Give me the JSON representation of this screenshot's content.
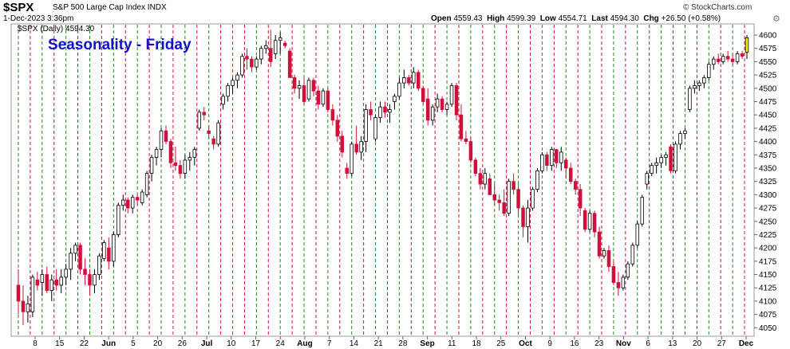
{
  "header": {
    "symbol": "$SPX",
    "description": "S&P 500 Large Cap Index INDX",
    "datetime": "1-Dec-2023 3:36pm",
    "open_label": "Open",
    "open": "4559.43",
    "high_label": "High",
    "high": "4599.39",
    "low_label": "Low",
    "low": "4554.71",
    "last_label": "Last",
    "last": "4594.30",
    "chg_label": "Chg",
    "chg": "+26.50 (+0.58%)",
    "brand": "© StockCharts.com",
    "legend": "$SPX (Daily) 4594.30"
  },
  "chart_data": {
    "type": "candlestick",
    "title": "Seasonality - Friday",
    "y_range": [
      4040,
      4615
    ],
    "y_ticks": [
      4050,
      4075,
      4100,
      4125,
      4150,
      4175,
      4200,
      4225,
      4250,
      4275,
      4300,
      4325,
      4350,
      4375,
      4400,
      4425,
      4450,
      4475,
      4500,
      4525,
      4550,
      4575,
      4600
    ],
    "x_tick_labels": [
      "8",
      "15",
      "22",
      "Jun",
      "5",
      "20",
      "26",
      "Jul",
      "10",
      "17",
      "24",
      "Aug",
      "7",
      "14",
      "21",
      "28",
      "Sep",
      "11",
      "18",
      "25",
      "Oct",
      "9",
      "16",
      "23",
      "Nov",
      "6",
      "13",
      "20",
      "27",
      "Dec"
    ],
    "colors": {
      "up": "#ffffff",
      "down": "#d0103a",
      "outline": "#000000",
      "friday_line": "#1a8a1a",
      "other_line": "#d0103a",
      "highlight": "#f4f000"
    },
    "candles": [
      [
        4130,
        4160,
        4075,
        4100
      ],
      [
        4100,
        4130,
        4055,
        4080
      ],
      [
        4080,
        4110,
        4060,
        4095
      ],
      [
        4080,
        4150,
        4070,
        4145
      ],
      [
        4140,
        4155,
        4120,
        4130
      ],
      [
        4135,
        4160,
        4110,
        4150
      ],
      [
        4150,
        4165,
        4115,
        4120
      ],
      [
        4120,
        4150,
        4100,
        4140
      ],
      [
        4140,
        4160,
        4120,
        4130
      ],
      [
        4130,
        4160,
        4115,
        4145
      ],
      [
        4145,
        4170,
        4130,
        4160
      ],
      [
        4160,
        4200,
        4140,
        4190
      ],
      [
        4190,
        4210,
        4175,
        4205
      ],
      [
        4205,
        4210,
        4150,
        4160
      ],
      [
        4160,
        4180,
        4130,
        4150
      ],
      [
        4150,
        4160,
        4110,
        4130
      ],
      [
        4130,
        4160,
        4115,
        4150
      ],
      [
        4150,
        4190,
        4140,
        4185
      ],
      [
        4180,
        4215,
        4175,
        4210
      ],
      [
        4200,
        4220,
        4160,
        4175
      ],
      [
        4175,
        4230,
        4165,
        4225
      ],
      [
        4225,
        4285,
        4220,
        4280
      ],
      [
        4280,
        4300,
        4270,
        4290
      ],
      [
        4290,
        4295,
        4265,
        4275
      ],
      [
        4275,
        4300,
        4265,
        4295
      ],
      [
        4295,
        4300,
        4280,
        4290
      ],
      [
        4285,
        4310,
        4280,
        4305
      ],
      [
        4300,
        4345,
        4295,
        4340
      ],
      [
        4340,
        4375,
        4325,
        4370
      ],
      [
        4370,
        4390,
        4355,
        4385
      ],
      [
        4385,
        4425,
        4370,
        4420
      ],
      [
        4420,
        4430,
        4395,
        4400
      ],
      [
        4400,
        4405,
        4350,
        4360
      ],
      [
        4360,
        4390,
        4345,
        4355
      ],
      [
        4355,
        4365,
        4330,
        4340
      ],
      [
        4340,
        4375,
        4330,
        4365
      ],
      [
        4365,
        4380,
        4345,
        4370
      ],
      [
        4370,
        4390,
        4355,
        4385
      ],
      [
        4425,
        4460,
        4420,
        4455
      ],
      [
        4455,
        4465,
        4440,
        4450
      ],
      [
        4420,
        4430,
        4405,
        4415
      ],
      [
        4405,
        4410,
        4385,
        4395
      ],
      [
        4395,
        4440,
        4390,
        4435
      ],
      [
        4470,
        4490,
        4460,
        4485
      ],
      [
        4485,
        4510,
        4475,
        4505
      ],
      [
        4505,
        4520,
        4490,
        4515
      ],
      [
        4515,
        4530,
        4500,
        4525
      ],
      [
        4525,
        4565,
        4520,
        4560
      ],
      [
        4560,
        4575,
        4535,
        4555
      ],
      [
        4555,
        4560,
        4530,
        4540
      ],
      [
        4540,
        4560,
        4535,
        4555
      ],
      [
        4555,
        4580,
        4545,
        4575
      ],
      [
        4575,
        4590,
        4565,
        4580
      ],
      [
        4575,
        4610,
        4540,
        4550
      ],
      [
        4565,
        4600,
        4555,
        4590
      ],
      [
        4590,
        4605,
        4565,
        4595
      ],
      [
        4585,
        4590,
        4575,
        4580
      ],
      [
        4570,
        4575,
        4520,
        4520
      ],
      [
        4520,
        4525,
        4490,
        4500
      ],
      [
        4500,
        4515,
        4480,
        4505
      ],
      [
        4505,
        4520,
        4470,
        4475
      ],
      [
        4480,
        4520,
        4475,
        4515
      ],
      [
        4515,
        4520,
        4485,
        4495
      ],
      [
        4495,
        4505,
        4460,
        4470
      ],
      [
        4470,
        4500,
        4465,
        4495
      ],
      [
        4495,
        4500,
        4455,
        4460
      ],
      [
        4460,
        4470,
        4430,
        4440
      ],
      [
        4440,
        4450,
        4400,
        4410
      ],
      [
        4410,
        4420,
        4370,
        4380
      ],
      [
        4350,
        4360,
        4330,
        4340
      ],
      [
        4340,
        4400,
        4335,
        4395
      ],
      [
        4395,
        4430,
        4375,
        4380
      ],
      [
        4380,
        4410,
        4365,
        4400
      ],
      [
        4400,
        4470,
        4380,
        4460
      ],
      [
        4460,
        4475,
        4440,
        4450
      ],
      [
        4405,
        4450,
        4400,
        4445
      ],
      [
        4445,
        4475,
        4435,
        4465
      ],
      [
        4465,
        4475,
        4445,
        4455
      ],
      [
        4455,
        4470,
        4435,
        4460
      ],
      [
        4475,
        4490,
        4460,
        4485
      ],
      [
        4485,
        4520,
        4480,
        4510
      ],
      [
        4510,
        4535,
        4500,
        4520
      ],
      [
        4520,
        4525,
        4505,
        4510
      ],
      [
        4510,
        4540,
        4500,
        4530
      ],
      [
        4530,
        4535,
        4495,
        4500
      ],
      [
        4500,
        4505,
        4470,
        4475
      ],
      [
        4480,
        4500,
        4430,
        4440
      ],
      [
        4440,
        4470,
        4430,
        4465
      ],
      [
        4465,
        4490,
        4455,
        4480
      ],
      [
        4480,
        4485,
        4455,
        4460
      ],
      [
        4460,
        4475,
        4450,
        4470
      ],
      [
        4470,
        4510,
        4465,
        4505
      ],
      [
        4505,
        4510,
        4440,
        4450
      ],
      [
        4450,
        4470,
        4400,
        4405
      ],
      [
        4405,
        4420,
        4395,
        4400
      ],
      [
        4400,
        4410,
        4360,
        4365
      ],
      [
        4365,
        4370,
        4335,
        4340
      ],
      [
        4340,
        4350,
        4310,
        4320
      ],
      [
        4320,
        4350,
        4310,
        4340
      ],
      [
        4330,
        4340,
        4300,
        4300
      ],
      [
        4300,
        4320,
        4280,
        4290
      ],
      [
        4290,
        4300,
        4270,
        4285
      ],
      [
        4285,
        4310,
        4260,
        4265
      ],
      [
        4265,
        4330,
        4260,
        4325
      ],
      [
        4325,
        4340,
        4300,
        4310
      ],
      [
        4310,
        4320,
        4260,
        4275
      ],
      [
        4275,
        4280,
        4220,
        4240
      ],
      [
        4240,
        4290,
        4210,
        4275
      ],
      [
        4275,
        4315,
        4270,
        4310
      ],
      [
        4310,
        4350,
        4305,
        4345
      ],
      [
        4345,
        4380,
        4340,
        4375
      ],
      [
        4375,
        4380,
        4345,
        4355
      ],
      [
        4355,
        4390,
        4345,
        4385
      ],
      [
        4385,
        4385,
        4350,
        4360
      ],
      [
        4360,
        4390,
        4345,
        4380
      ],
      [
        4365,
        4370,
        4330,
        4350
      ],
      [
        4350,
        4360,
        4320,
        4325
      ],
      [
        4325,
        4330,
        4300,
        4310
      ],
      [
        4310,
        4320,
        4260,
        4275
      ],
      [
        4270,
        4275,
        4230,
        4235
      ],
      [
        4235,
        4270,
        4230,
        4265
      ],
      [
        4265,
        4270,
        4220,
        4230
      ],
      [
        4230,
        4240,
        4180,
        4185
      ],
      [
        4185,
        4200,
        4180,
        4195
      ],
      [
        4195,
        4205,
        4155,
        4165
      ],
      [
        4165,
        4175,
        4130,
        4135
      ],
      [
        4135,
        4155,
        4110,
        4125
      ],
      [
        4125,
        4150,
        4120,
        4145
      ],
      [
        4145,
        4175,
        4140,
        4170
      ],
      [
        4170,
        4210,
        4165,
        4205
      ],
      [
        4205,
        4250,
        4200,
        4245
      ],
      [
        4245,
        4300,
        4240,
        4295
      ],
      [
        4320,
        4345,
        4310,
        4340
      ],
      [
        4340,
        4360,
        4335,
        4355
      ],
      [
        4355,
        4370,
        4340,
        4360
      ],
      [
        4360,
        4375,
        4350,
        4370
      ],
      [
        4370,
        4380,
        4355,
        4375
      ],
      [
        4390,
        4395,
        4340,
        4345
      ],
      [
        4345,
        4400,
        4340,
        4395
      ],
      [
        4395,
        4420,
        4385,
        4415
      ],
      [
        4415,
        4425,
        4405,
        4420
      ],
      [
        4460,
        4505,
        4455,
        4500
      ],
      [
        4500,
        4515,
        4490,
        4505
      ],
      [
        4505,
        4515,
        4495,
        4510
      ],
      [
        4510,
        4525,
        4500,
        4520
      ],
      [
        4520,
        4550,
        4515,
        4545
      ],
      [
        4545,
        4560,
        4535,
        4555
      ],
      [
        4555,
        4565,
        4545,
        4550
      ],
      [
        4550,
        4565,
        4545,
        4560
      ],
      [
        4560,
        4570,
        4550,
        4555
      ],
      [
        4555,
        4565,
        4545,
        4550
      ],
      [
        4550,
        4570,
        4545,
        4565
      ],
      [
        4565,
        4570,
        4555,
        4560
      ],
      [
        4568,
        4600,
        4555,
        4595
      ]
    ]
  }
}
